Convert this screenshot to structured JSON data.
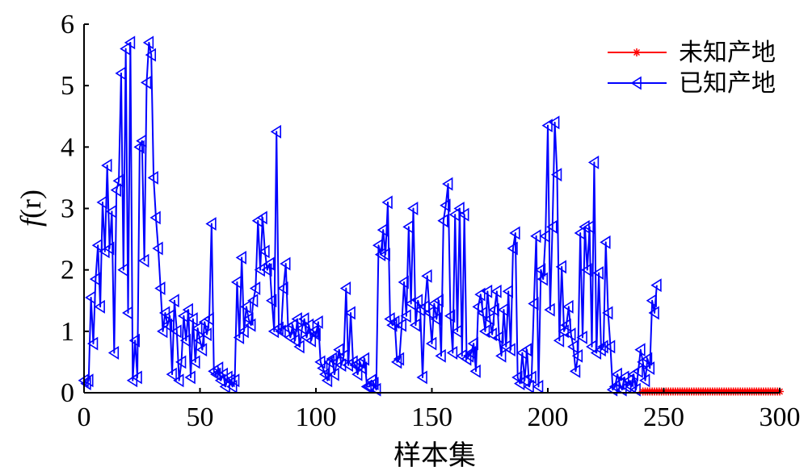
{
  "chart_data": {
    "type": "line",
    "title": "",
    "xlabel": "样本集",
    "ylabel_italic": "f",
    "ylabel_rest": "(r)",
    "xlim": [
      0,
      300
    ],
    "ylim": [
      0,
      6
    ],
    "xticks": [
      "0",
      "50",
      "100",
      "150",
      "200",
      "250",
      "300"
    ],
    "yticks": [
      "0",
      "1",
      "2",
      "3",
      "4",
      "5",
      "6"
    ],
    "grid": false,
    "legend_position": "top-right",
    "series": [
      {
        "name": "未知产地",
        "color": "#ff0000",
        "marker": "asterisk",
        "x_start": 241,
        "x_end": 300,
        "value": 0.02
      },
      {
        "name": "已知产地",
        "color": "#0000ff",
        "marker": "triangle-left",
        "y": [
          0.2,
          0.15,
          0.2,
          1.55,
          0.8,
          1.85,
          2.4,
          1.4,
          3.1,
          2.3,
          3.7,
          2.35,
          2.95,
          0.65,
          3.3,
          3.45,
          5.2,
          2.0,
          5.6,
          1.3,
          5.7,
          0.2,
          0.85,
          0.25,
          4.0,
          4.1,
          2.15,
          5.05,
          5.7,
          5.5,
          3.5,
          2.85,
          2.35,
          1.7,
          1.0,
          1.3,
          1.1,
          1.25,
          0.3,
          1.5,
          1.0,
          0.2,
          0.5,
          1.25,
          0.85,
          1.35,
          0.25,
          1.2,
          0.5,
          1.05,
          0.85,
          0.7,
          1.15,
          0.95,
          1.2,
          2.75,
          0.35,
          0.3,
          0.4,
          0.2,
          0.3,
          0.1,
          0.25,
          0.2,
          0.1,
          0.2,
          1.8,
          0.9,
          2.2,
          1.0,
          1.4,
          1.2,
          1.1,
          1.5,
          1.7,
          2.8,
          2.0,
          2.85,
          2.3,
          2.0,
          2.1,
          1.5,
          1.0,
          4.25,
          1.05,
          1.0,
          1.7,
          2.1,
          1.05,
          0.9,
          1.1,
          0.85,
          1.2,
          0.75,
          1.05,
          1.2,
          0.9,
          1.1,
          0.85,
          1.0,
          0.95,
          1.15,
          0.5,
          0.4,
          0.3,
          0.2,
          0.5,
          0.55,
          0.3,
          0.5,
          0.7,
          0.45,
          0.6,
          1.7,
          0.45,
          1.3,
          0.5,
          0.45,
          0.3,
          0.5,
          0.4,
          0.55,
          0.1,
          0.1,
          0.2,
          0.15,
          0.05,
          2.4,
          2.25,
          2.65,
          2.25,
          3.1,
          1.2,
          1.1,
          1.15,
          0.5,
          0.55,
          1.1,
          1.8,
          1.25,
          2.7,
          1.45,
          3.0,
          1.1,
          1.5,
          1.35,
          0.25,
          1.4,
          1.9,
          1.3,
          0.8,
          1.45,
          1.2,
          1.5,
          0.6,
          2.8,
          3.05,
          3.4,
          1.25,
          0.65,
          2.9,
          1.0,
          3.0,
          0.6,
          2.9,
          0.55,
          0.6,
          0.65,
          0.8,
          0.35,
          1.4,
          1.6,
          1.3,
          1.0,
          1.65,
          1.2,
          0.95,
          1.35,
          1.65,
          0.9,
          0.6,
          1.35,
          0.75,
          1.65,
          0.7,
          2.35,
          2.6,
          0.25,
          0.15,
          0.65,
          0.2,
          0.7,
          0.1,
          0.25,
          1.45,
          2.55,
          0.1,
          2.0,
          1.85,
          2.55,
          4.35,
          1.35,
          2.7,
          4.4,
          3.55,
          0.85,
          2.05,
          1.0,
          1.1,
          1.4,
          0.95,
          0.75,
          0.35,
          0.6,
          2.6,
          0.9,
          2.7,
          2.0,
          2.7,
          0.75,
          3.75,
          0.65,
          1.95,
          0.7,
          0.75,
          2.45,
          1.3,
          0.75,
          0.05,
          0.1,
          0.3,
          0.15,
          0.05,
          0.25,
          0.1,
          0.2,
          0.1,
          0.3,
          0.05,
          0.35,
          0.7,
          0.5,
          0.2,
          0.55,
          0.4,
          1.5,
          1.3,
          1.75
        ]
      }
    ]
  }
}
